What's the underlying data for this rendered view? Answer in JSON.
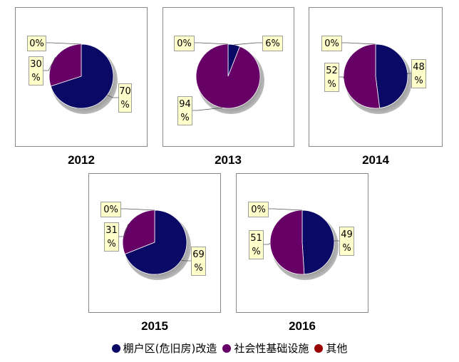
{
  "chart_data": {
    "type": "pie",
    "series_names": [
      "棚户区(危旧房)改造",
      "社会性基础设施",
      "其他"
    ],
    "colors": [
      "#0a0a66",
      "#660066",
      "#990000"
    ],
    "charts": [
      {
        "title": "2012",
        "values": [
          70,
          30,
          0
        ],
        "labels": [
          "70%",
          "30%",
          "0%"
        ]
      },
      {
        "title": "2013",
        "values": [
          6,
          94,
          0
        ],
        "labels": [
          "6%",
          "94%",
          "0%"
        ]
      },
      {
        "title": "2014",
        "values": [
          48,
          52,
          0
        ],
        "labels": [
          "48%",
          "52%",
          "0%"
        ]
      },
      {
        "title": "2015",
        "values": [
          69,
          31,
          0
        ],
        "labels": [
          "69%",
          "31%",
          "0%"
        ]
      },
      {
        "title": "2016",
        "values": [
          49,
          51,
          0
        ],
        "labels": [
          "49%",
          "51%",
          "0%"
        ]
      }
    ],
    "legend_position": "bottom"
  }
}
